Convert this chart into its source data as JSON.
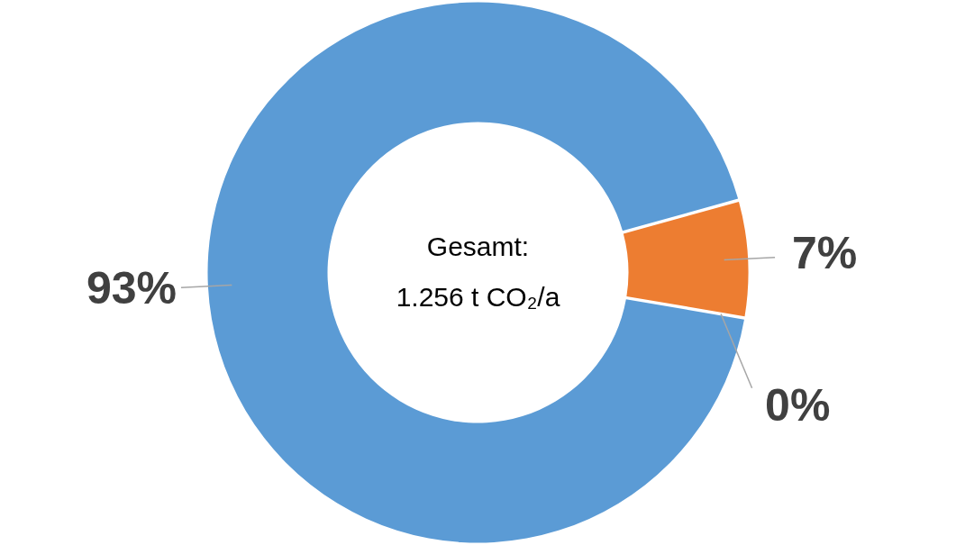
{
  "chart_data": {
    "type": "donut",
    "categories": [
      null,
      null,
      null
    ],
    "values": [
      7,
      0,
      93
    ],
    "colors": [
      "#ed7d31",
      "#a5a5a5",
      "#5b9bd5"
    ],
    "value_labels": [
      "7%",
      "0%",
      "93%"
    ],
    "annotations": [
      "Gesamt:",
      "1.256 t CO₂/a"
    ]
  }
}
